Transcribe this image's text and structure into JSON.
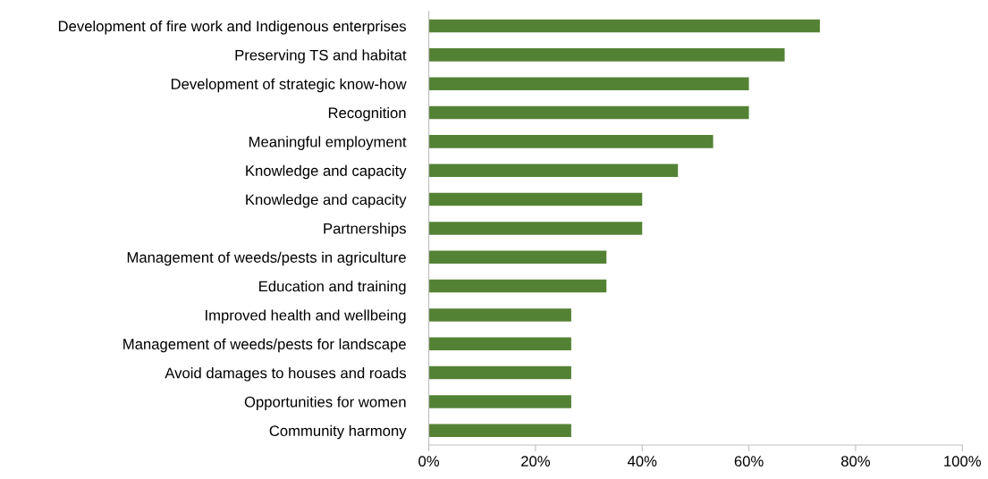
{
  "chart_data": {
    "type": "bar",
    "orientation": "horizontal",
    "categories": [
      "Development of fire work and Indigenous enterprises",
      "Preserving TS and habitat",
      "Development of strategic know-how",
      "Recognition",
      "Meaningful employment",
      "Knowledge and capacity",
      "Knowledge and capacity",
      "Partnerships",
      "Management of weeds/pests in agriculture",
      "Education and training",
      "Improved health and wellbeing",
      "Management of weeds/pests for landscape",
      "Avoid damages to houses and roads",
      "Opportunities for women",
      "Community harmony"
    ],
    "values": [
      73.3,
      66.7,
      60,
      60,
      53.3,
      46.7,
      40,
      40,
      33.3,
      33.3,
      26.7,
      26.7,
      26.7,
      26.7,
      26.7
    ],
    "color": "#548235",
    "xlim": [
      0,
      100
    ],
    "xticks": [
      {
        "value": 0,
        "label": "0%"
      },
      {
        "value": 20,
        "label": "20%"
      },
      {
        "value": 40,
        "label": "40%"
      },
      {
        "value": 60,
        "label": "60%"
      },
      {
        "value": 80,
        "label": "80%"
      },
      {
        "value": 100,
        "label": "100%"
      }
    ],
    "grid": false,
    "legend": false
  }
}
